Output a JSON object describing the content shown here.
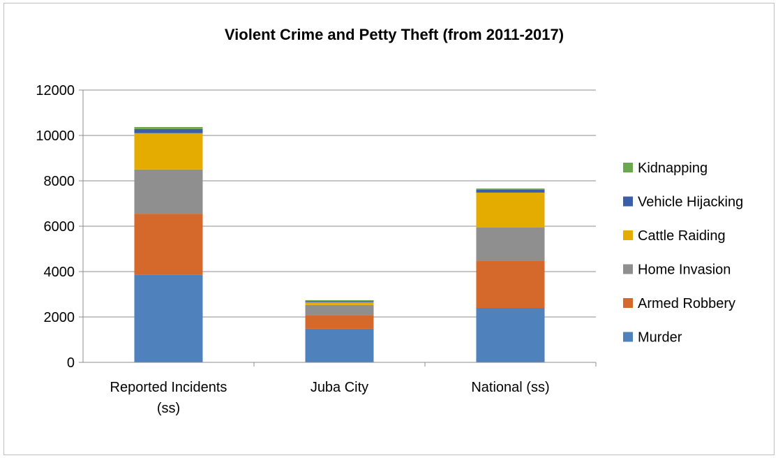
{
  "chart_data": {
    "type": "bar",
    "stacked": true,
    "title": "Violent Crime and Petty Theft (from 2011-2017)",
    "xlabel": "",
    "ylabel": "",
    "categories": [
      [
        "Reported Incidents",
        "(ss)"
      ],
      [
        "Juba City"
      ],
      [
        "National (ss)"
      ]
    ],
    "ylim": [
      0,
      12000
    ],
    "yticks": [
      0,
      2000,
      4000,
      6000,
      8000,
      10000,
      12000
    ],
    "grid": true,
    "legend_position": "right",
    "series": [
      {
        "name": "Murder",
        "color": "#4f81bd",
        "values": [
          3850,
          1480,
          2400
        ]
      },
      {
        "name": "Armed Robbery",
        "color": "#d4692b",
        "values": [
          2700,
          600,
          2080
        ]
      },
      {
        "name": "Home Invasion",
        "color": "#8f8f8f",
        "values": [
          1950,
          450,
          1470
        ]
      },
      {
        "name": "Cattle Raiding",
        "color": "#e5ac00",
        "values": [
          1600,
          120,
          1530
        ]
      },
      {
        "name": "Vehicle Hijacking",
        "color": "#3a5ea9",
        "values": [
          180,
          50,
          120
        ]
      },
      {
        "name": "Kidnapping",
        "color": "#6aa84f",
        "values": [
          90,
          40,
          60
        ]
      }
    ]
  }
}
